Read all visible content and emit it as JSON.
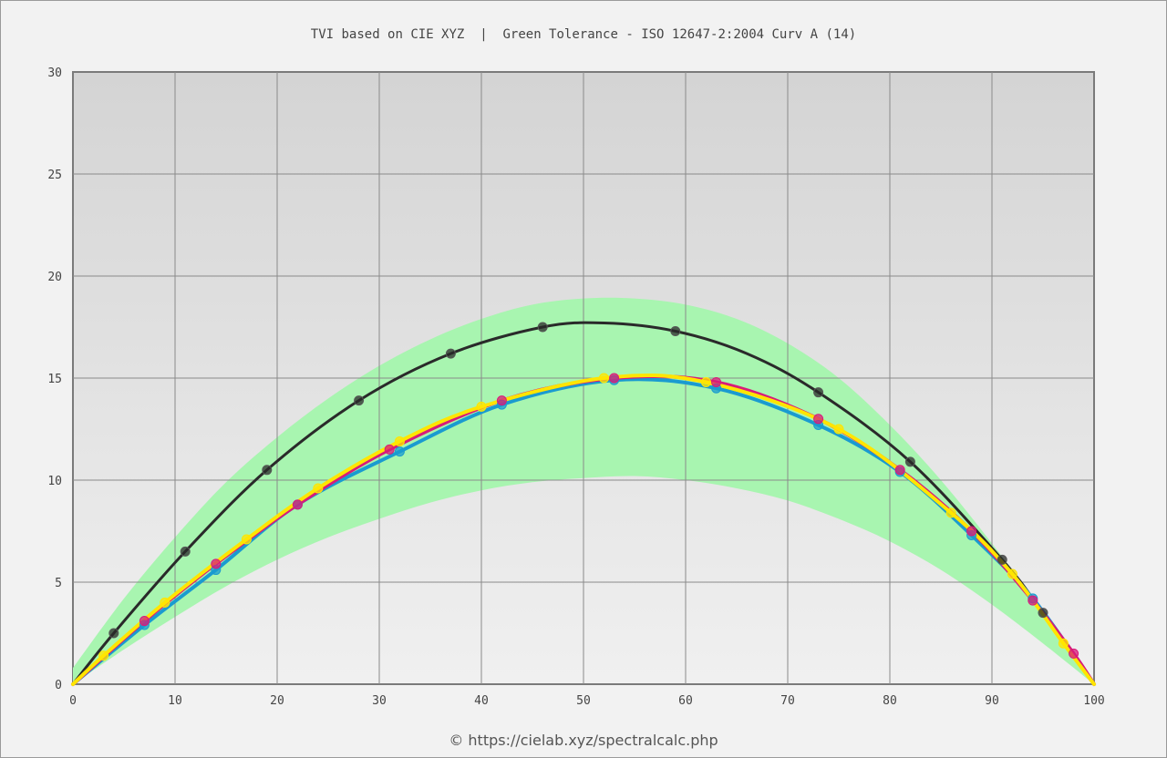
{
  "title": "TVI based on CIE XYZ  |  Green Tolerance - ISO 12647-2:2004 Curv A (14)",
  "footer": "© https://cielab.xyz/spectralcalc.php",
  "chart_data": {
    "type": "line",
    "title": "TVI based on CIE XYZ  |  Green Tolerance - ISO 12647-2:2004 Curv A (14)",
    "xlabel": "",
    "ylabel": "",
    "xlim": [
      0,
      100
    ],
    "ylim": [
      0,
      30
    ],
    "x_ticks": [
      0,
      10,
      20,
      30,
      40,
      50,
      60,
      70,
      80,
      90,
      100
    ],
    "y_ticks": [
      0,
      5,
      10,
      15,
      20,
      25,
      30
    ],
    "grid": true,
    "tolerance_band": {
      "color": "#a8f5b0",
      "x": [
        0,
        5,
        10,
        15,
        20,
        25,
        30,
        35,
        40,
        45,
        50,
        55,
        60,
        65,
        70,
        75,
        80,
        85,
        90,
        95,
        100
      ],
      "upper": [
        0.8,
        4.2,
        7.2,
        9.9,
        12.1,
        14.0,
        15.6,
        16.9,
        17.9,
        18.6,
        18.9,
        18.9,
        18.6,
        17.9,
        16.7,
        15.0,
        12.7,
        10.0,
        6.9,
        3.6,
        0
      ],
      "lower": [
        0,
        1.7,
        3.3,
        4.8,
        6.1,
        7.2,
        8.1,
        8.9,
        9.5,
        9.9,
        10.1,
        10.2,
        10.0,
        9.6,
        9.0,
        8.1,
        7.0,
        5.6,
        3.9,
        2.0,
        0
      ]
    },
    "series": [
      {
        "color": "#2a2a2a",
        "x": [
          0,
          4,
          11,
          19,
          28,
          37,
          46,
          52,
          59,
          66,
          73,
          82,
          91,
          95,
          100
        ],
        "y": [
          0,
          2.5,
          6.5,
          10.5,
          13.9,
          16.2,
          17.5,
          17.7,
          17.3,
          16.2,
          14.3,
          10.9,
          6.1,
          3.5,
          0
        ],
        "markers_x": [
          4,
          11,
          19,
          28,
          37,
          46,
          59,
          73,
          82,
          91,
          95
        ],
        "markers_y": [
          2.5,
          6.5,
          10.5,
          13.9,
          16.2,
          17.5,
          17.3,
          14.3,
          10.9,
          6.1,
          3.5
        ]
      },
      {
        "color": "#1a9bd0",
        "x": [
          0,
          7,
          14,
          22,
          32,
          42,
          53,
          63,
          73,
          81,
          88,
          94,
          100
        ],
        "y": [
          0,
          2.9,
          5.6,
          8.8,
          11.4,
          13.7,
          14.9,
          14.5,
          12.7,
          10.4,
          7.3,
          4.2,
          0
        ],
        "markers_x": [
          7,
          14,
          22,
          32,
          42,
          53,
          63,
          73,
          81,
          88,
          94
        ],
        "markers_y": [
          2.9,
          5.6,
          8.8,
          11.4,
          13.7,
          14.9,
          14.5,
          12.7,
          10.4,
          7.3,
          4.2
        ]
      },
      {
        "color": "#d81b7a",
        "x": [
          0,
          7,
          14,
          22,
          31,
          42,
          53,
          63,
          73,
          81,
          88,
          94,
          98,
          100
        ],
        "y": [
          0,
          3.1,
          5.9,
          8.8,
          11.5,
          13.9,
          15.0,
          14.8,
          13.0,
          10.5,
          7.5,
          4.1,
          1.5,
          0
        ],
        "markers_x": [
          7,
          14,
          22,
          31,
          42,
          53,
          63,
          73,
          81,
          88,
          94,
          98
        ],
        "markers_y": [
          3.1,
          5.9,
          8.8,
          11.5,
          13.9,
          15.0,
          14.8,
          13.0,
          10.5,
          7.5,
          4.1,
          1.5
        ]
      },
      {
        "color": "#ffe500",
        "x": [
          0,
          3,
          9,
          17,
          24,
          32,
          40,
          52,
          62,
          75,
          86,
          92,
          97,
          100
        ],
        "y": [
          0,
          1.4,
          4.0,
          7.1,
          9.6,
          11.9,
          13.6,
          15.0,
          14.8,
          12.5,
          8.4,
          5.4,
          2.0,
          0
        ],
        "markers_x": [
          3,
          9,
          17,
          24,
          32,
          40,
          52,
          62,
          75,
          86,
          92,
          97
        ],
        "markers_y": [
          1.4,
          4.0,
          7.1,
          9.6,
          11.9,
          13.6,
          15.0,
          14.8,
          12.5,
          8.4,
          5.4,
          2.0
        ]
      }
    ]
  }
}
